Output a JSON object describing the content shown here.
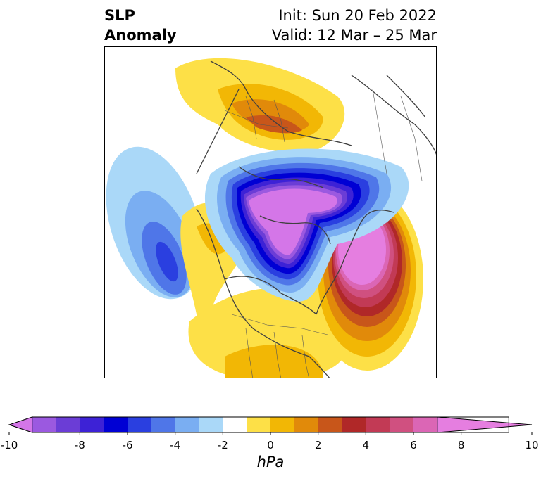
{
  "title": {
    "left_line1": "SLP",
    "left_line2": "Anomaly",
    "init": "Init: Sun 20 Feb 2022",
    "valid": "Valid: 12 Mar – 25 Mar"
  },
  "map": {
    "projection": "north polar stereographic",
    "features": [
      "coastlines",
      "country borders",
      "US state boundaries"
    ]
  },
  "colorbar": {
    "unit": "hPa",
    "ticks": [
      "-10",
      "-8",
      "-6",
      "-4",
      "-2",
      "0",
      "2",
      "4",
      "6",
      "8",
      "10"
    ],
    "colors": [
      "#d476e8",
      "#9b59e0",
      "#6b3dd6",
      "#3d22d6",
      "#0000d4",
      "#2a3fe0",
      "#4f76e8",
      "#7aaef2",
      "#aad8f8",
      "#ffffff",
      "#fde047",
      "#f2b705",
      "#e18a0a",
      "#c8561a",
      "#b02828",
      "#c23a55",
      "#d05080",
      "#db66b5",
      "#e57ee0"
    ]
  }
}
